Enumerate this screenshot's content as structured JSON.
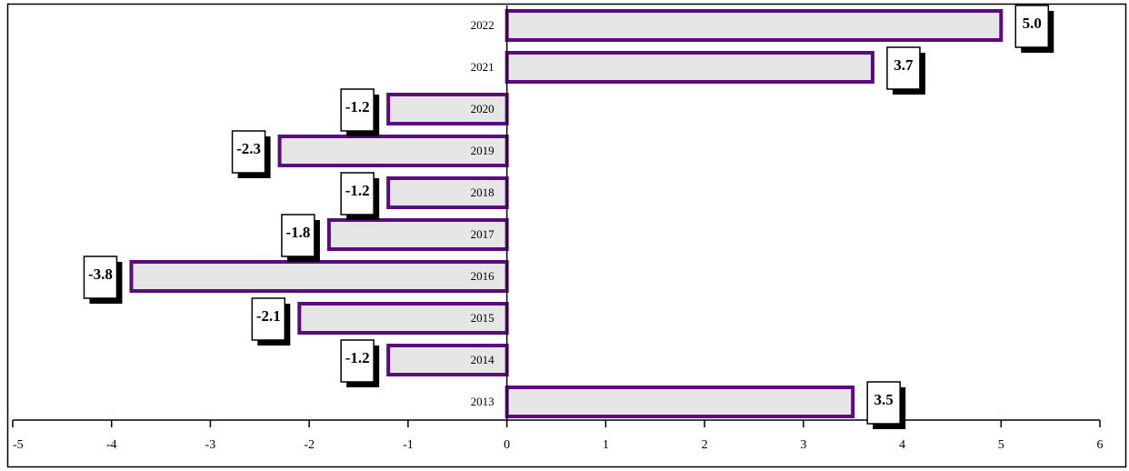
{
  "chart_data": {
    "type": "bar",
    "orientation": "horizontal",
    "categories": [
      "2013",
      "2014",
      "2015",
      "2016",
      "2017",
      "2018",
      "2019",
      "2020",
      "2021",
      "2022"
    ],
    "values": [
      3.5,
      -1.2,
      -2.1,
      -3.8,
      -1.8,
      -1.2,
      -2.3,
      -1.2,
      3.7,
      5.0
    ],
    "data_labels": [
      "3.5",
      "-1.2",
      "-2.1",
      "-3.8",
      "-1.8",
      "-1.2",
      "-2.3",
      "-1.2",
      "3.7",
      "5.0"
    ],
    "x_ticks": [
      "-5",
      "-4",
      "-3",
      "-2",
      "-1",
      "0",
      "1",
      "2",
      "3",
      "4",
      "5",
      "6"
    ],
    "xlim": [
      -5,
      6
    ],
    "title": "",
    "xlabel": "",
    "ylabel": "",
    "grid": false,
    "legend": "none",
    "colors": {
      "bar_fill": "#e6e6e6",
      "bar_border": "#5c0a80",
      "label_box": "#ffffff",
      "label_shadow": "#000000"
    }
  }
}
